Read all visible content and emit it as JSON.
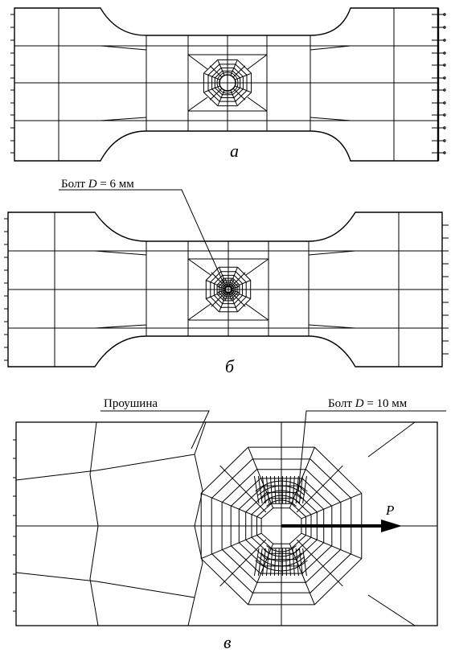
{
  "panels": {
    "a": {
      "caption": "а"
    },
    "b": {
      "caption": "б",
      "bolt_label_prefix": "Болт ",
      "bolt_label_var": "D",
      "bolt_label_rest": " = 6 мм"
    },
    "c": {
      "caption": "в",
      "lug_label": "Проушина",
      "bolt_label_prefix": "Болт ",
      "bolt_label_var": "D",
      "bolt_label_rest": " = 10 мм",
      "force_label": "P"
    }
  },
  "colors": {
    "line": "#000000",
    "background": "#ffffff"
  }
}
